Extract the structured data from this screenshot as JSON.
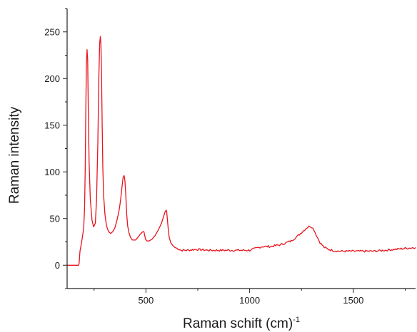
{
  "chart_data": {
    "type": "line",
    "title": "",
    "xlabel": "Raman schift (cm)",
    "xlabel_superscript": "-1",
    "ylabel": "Raman intensity",
    "xlim": [
      120,
      1800
    ],
    "ylim": [
      -25,
      275
    ],
    "x_ticks": [
      500,
      1000,
      1500
    ],
    "x_tick_labels": [
      "500",
      "1000",
      "1500"
    ],
    "y_ticks": [
      0,
      50,
      100,
      150,
      200,
      250
    ],
    "y_tick_labels": [
      "0",
      "50",
      "100",
      "150",
      "200",
      "250"
    ],
    "grid": false,
    "legend": "none",
    "series": [
      {
        "color": "#e8141e",
        "x": [
          120,
          160,
          175,
          178,
          182,
          190,
          195,
          200,
          204,
          207,
          210,
          213,
          216,
          219,
          222,
          226,
          232,
          240,
          248,
          256,
          262,
          268,
          273,
          277,
          280,
          283,
          286,
          289,
          292,
          296,
          302,
          310,
          320,
          330,
          340,
          350,
          360,
          370,
          378,
          385,
          390,
          395,
          399,
          403,
          407,
          412,
          418,
          425,
          435,
          450,
          462,
          472,
          480,
          486,
          490,
          494,
          498,
          505,
          515,
          530,
          545,
          560,
          575,
          585,
          592,
          597,
          600,
          603,
          607,
          612,
          620,
          630,
          640,
          650,
          660,
          670,
          680,
          700,
          740,
          800,
          850,
          900,
          950,
          1000,
          1030,
          1060,
          1080,
          1100,
          1150,
          1200,
          1230,
          1255,
          1275,
          1290,
          1300,
          1310,
          1322,
          1340,
          1360,
          1380,
          1400,
          1430,
          1460,
          1500,
          1550,
          1600,
          1650,
          1700,
          1750,
          1800
        ],
        "y": [
          0,
          0,
          0,
          2,
          15,
          25,
          32,
          40,
          60,
          100,
          160,
          215,
          231,
          220,
          170,
          110,
          70,
          48,
          41,
          45,
          70,
          130,
          200,
          238,
          245,
          238,
          205,
          150,
          105,
          75,
          55,
          42,
          36,
          34,
          36,
          40,
          48,
          58,
          70,
          85,
          94,
          96,
          90,
          75,
          55,
          42,
          35,
          30,
          27,
          27,
          30,
          33,
          35,
          36,
          36,
          32,
          28,
          26,
          26,
          28,
          32,
          38,
          45,
          52,
          57,
          59,
          58,
          50,
          40,
          30,
          24,
          21,
          19,
          18,
          17,
          16,
          16,
          16,
          17,
          16,
          16,
          16,
          16,
          16,
          18,
          20,
          20,
          20,
          22,
          26,
          31,
          36,
          40,
          42,
          41,
          38,
          32,
          24,
          19,
          17,
          16,
          15,
          15,
          15,
          15,
          15,
          16,
          17,
          18,
          19
        ]
      }
    ]
  }
}
